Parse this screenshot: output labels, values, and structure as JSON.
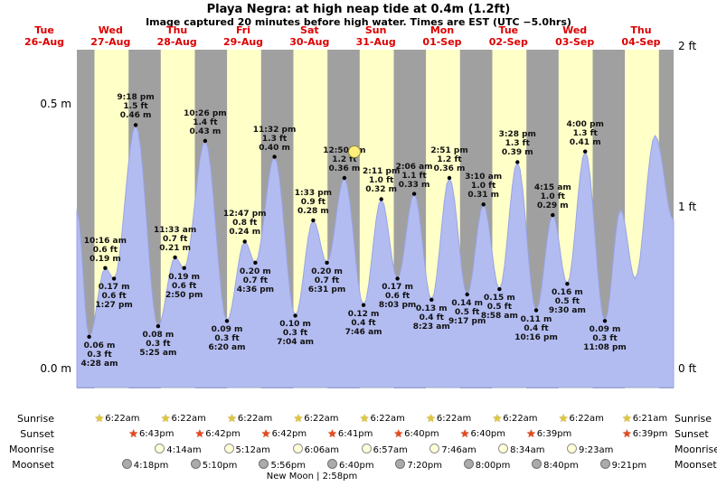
{
  "header": {
    "title": "Playa Negra: at high  neap tide at 0.4m (1.2ft)",
    "subtitle": "Image captured 20 minutes before high water. Times are EST (UTC −5.0hrs)"
  },
  "axis": {
    "left_labels": [
      {
        "text": "0.5 m",
        "value_m": 0.5
      },
      {
        "text": "0.0 m",
        "value_m": 0.0
      }
    ],
    "right_labels": [
      {
        "text": "2 ft",
        "value_m": 0.6096
      },
      {
        "text": "1 ft",
        "value_m": 0.3048
      },
      {
        "text": "0 ft",
        "value_m": 0.0
      }
    ]
  },
  "days": [
    {
      "name": "Tue",
      "date": "26-Aug"
    },
    {
      "name": "Wed",
      "date": "27-Aug"
    },
    {
      "name": "Thu",
      "date": "28-Aug"
    },
    {
      "name": "Fri",
      "date": "29-Aug"
    },
    {
      "name": "Sat",
      "date": "30-Aug"
    },
    {
      "name": "Sun",
      "date": "31-Aug"
    },
    {
      "name": "Mon",
      "date": "01-Sep"
    },
    {
      "name": "Tue",
      "date": "02-Sep"
    },
    {
      "name": "Wed",
      "date": "03-Sep"
    },
    {
      "name": "Thu",
      "date": "04-Sep"
    }
  ],
  "chart_data": {
    "type": "area",
    "title": "Playa Negra: at high  neap tide at 0.4m (1.2ft)",
    "x_axis": {
      "start": "26-Aug 00:00",
      "end": "04-Sep 00:00",
      "range_days": [
        0,
        9
      ]
    },
    "y_axis": {
      "left_units": "m",
      "right_units": "ft",
      "range_m": [
        0.0,
        0.6
      ],
      "ticks_m": [
        0.0,
        0.5
      ],
      "ticks_ft": [
        0,
        1,
        2
      ]
    },
    "daylight": {
      "sunrise_hour": 6.37,
      "sunset_hour": 18.7
    },
    "colors": {
      "day_band": "#ffffc8",
      "night_band": "#a0a0a0",
      "tide_fill": "#b3bcf0",
      "tide_stroke": "#98a4e8",
      "date_text": "#dd0000"
    },
    "tide_events": [
      {
        "day": 0,
        "time": "4:28 am",
        "type": "low",
        "m": 0.06,
        "m_label": "0.06 m",
        "ft_label": "0.3 ft"
      },
      {
        "day": 0,
        "time": "10:16 am",
        "type": "high",
        "m": 0.19,
        "m_label": "0.19 m",
        "ft_label": "0.6 ft"
      },
      {
        "day": 0,
        "time": "1:27 pm",
        "type": "low",
        "m": 0.17,
        "m_label": "0.17 m",
        "ft_label": "0.6 ft"
      },
      {
        "day": 0,
        "time": "9:18 pm",
        "type": "high",
        "m": 0.46,
        "m_label": "0.46 m",
        "ft_label": "1.5 ft"
      },
      {
        "day": 1,
        "time": "5:25 am",
        "type": "low",
        "m": 0.08,
        "m_label": "0.08 m",
        "ft_label": "0.3 ft"
      },
      {
        "day": 1,
        "time": "11:33 am",
        "type": "high",
        "m": 0.21,
        "m_label": "0.21 m",
        "ft_label": "0.7 ft"
      },
      {
        "day": 1,
        "time": "2:50 pm",
        "type": "low",
        "m": 0.19,
        "m_label": "0.19 m",
        "ft_label": "0.6 ft"
      },
      {
        "day": 1,
        "time": "10:26 pm",
        "type": "high",
        "m": 0.43,
        "m_label": "0.43 m",
        "ft_label": "1.4 ft"
      },
      {
        "day": 2,
        "time": "6:20 am",
        "type": "low",
        "m": 0.09,
        "m_label": "0.09 m",
        "ft_label": "0.3 ft"
      },
      {
        "day": 2,
        "time": "12:47 pm",
        "type": "high",
        "m": 0.24,
        "m_label": "0.24 m",
        "ft_label": "0.8 ft"
      },
      {
        "day": 2,
        "time": "4:36 pm",
        "type": "low",
        "m": 0.2,
        "m_label": "0.20 m",
        "ft_label": "0.7 ft"
      },
      {
        "day": 2,
        "time": "11:32 pm",
        "type": "high",
        "m": 0.4,
        "m_label": "0.40 m",
        "ft_label": "1.3 ft"
      },
      {
        "day": 3,
        "time": "7:04 am",
        "type": "low",
        "m": 0.1,
        "m_label": "0.10 m",
        "ft_label": "0.3 ft"
      },
      {
        "day": 3,
        "time": "1:33 pm",
        "type": "high",
        "m": 0.28,
        "m_label": "0.28 m",
        "ft_label": "0.9 ft"
      },
      {
        "day": 3,
        "time": "6:31 pm",
        "type": "low",
        "m": 0.2,
        "m_label": "0.20 m",
        "ft_label": "0.7 ft"
      },
      {
        "day": 4,
        "time": "12:50 am",
        "type": "high",
        "m": 0.36,
        "m_label": "0.36 m",
        "ft_label": "1.2 ft",
        "icon": "moon"
      },
      {
        "day": 4,
        "time": "7:46 am",
        "type": "low",
        "m": 0.12,
        "m_label": "0.12 m",
        "ft_label": "0.4 ft"
      },
      {
        "day": 4,
        "time": "2:11 pm",
        "type": "high",
        "m": 0.32,
        "m_label": "0.32 m",
        "ft_label": "1.0 ft"
      },
      {
        "day": 4,
        "time": "8:03 pm",
        "type": "low",
        "m": 0.17,
        "m_label": "0.17 m",
        "ft_label": "0.6 ft"
      },
      {
        "day": 5,
        "time": "2:06 am",
        "type": "high",
        "m": 0.33,
        "m_label": "0.33 m",
        "ft_label": "1.1 ft"
      },
      {
        "day": 5,
        "time": "8:23 am",
        "type": "low",
        "m": 0.13,
        "m_label": "0.13 m",
        "ft_label": "0.4 ft"
      },
      {
        "day": 5,
        "time": "2:51 pm",
        "type": "high",
        "m": 0.36,
        "m_label": "0.36 m",
        "ft_label": "1.2 ft"
      },
      {
        "day": 5,
        "time": "9:17 pm",
        "type": "low",
        "m": 0.14,
        "m_label": "0.14 m",
        "ft_label": "0.5 ft"
      },
      {
        "day": 6,
        "time": "3:10 am",
        "type": "high",
        "m": 0.31,
        "m_label": "0.31 m",
        "ft_label": "1.0 ft"
      },
      {
        "day": 6,
        "time": "8:58 am",
        "type": "low",
        "m": 0.15,
        "m_label": "0.15 m",
        "ft_label": "0.5 ft"
      },
      {
        "day": 6,
        "time": "3:28 pm",
        "type": "high",
        "m": 0.39,
        "m_label": "0.39 m",
        "ft_label": "1.3 ft"
      },
      {
        "day": 6,
        "time": "10:16 pm",
        "type": "low",
        "m": 0.11,
        "m_label": "0.11 m",
        "ft_label": "0.4 ft"
      },
      {
        "day": 7,
        "time": "4:15 am",
        "type": "high",
        "m": 0.29,
        "m_label": "0.29 m",
        "ft_label": "1.0 ft"
      },
      {
        "day": 7,
        "time": "9:30 am",
        "type": "low",
        "m": 0.16,
        "m_label": "0.16 m",
        "ft_label": "0.5 ft"
      },
      {
        "day": 7,
        "time": "4:00 pm",
        "type": "high",
        "m": 0.41,
        "m_label": "0.41 m",
        "ft_label": "1.3 ft"
      },
      {
        "day": 7,
        "time": "11:08 pm",
        "type": "low",
        "m": 0.09,
        "m_label": "0.09 m",
        "ft_label": "0.3 ft"
      }
    ],
    "edge_points": [
      {
        "t_days": 0.0,
        "m": 0.3
      },
      {
        "t_days": 8.2,
        "m": 0.3
      },
      {
        "t_days": 8.42,
        "m": 0.17
      },
      {
        "t_days": 8.72,
        "m": 0.44
      },
      {
        "t_days": 9.0,
        "m": 0.28
      }
    ]
  },
  "astro": {
    "row_labels_left": [
      "Sunrise",
      "Sunset",
      "Moonrise",
      "Moonset"
    ],
    "row_labels_right": [
      "Sunrise",
      "Sunset",
      "Moonrise",
      "Moonset"
    ],
    "sunrise": [
      {
        "day": 0,
        "time": "6:22am"
      },
      {
        "day": 1,
        "time": "6:22am"
      },
      {
        "day": 2,
        "time": "6:22am"
      },
      {
        "day": 3,
        "time": "6:22am"
      },
      {
        "day": 4,
        "time": "6:22am"
      },
      {
        "day": 5,
        "time": "6:22am"
      },
      {
        "day": 6,
        "time": "6:22am"
      },
      {
        "day": 7,
        "time": "6:22am"
      },
      {
        "day": 8,
        "time": "6:21am"
      }
    ],
    "sunset": [
      {
        "day": 0,
        "time": "6:43pm"
      },
      {
        "day": 1,
        "time": "6:42pm"
      },
      {
        "day": 2,
        "time": "6:42pm"
      },
      {
        "day": 3,
        "time": "6:41pm"
      },
      {
        "day": 4,
        "time": "6:40pm"
      },
      {
        "day": 5,
        "time": "6:40pm"
      },
      {
        "day": 6,
        "time": "6:39pm"
      },
      {
        "day": 8,
        "time": "6:39pm"
      }
    ],
    "moonrise": [
      {
        "day": 1,
        "time": "4:14am"
      },
      {
        "day": 2,
        "time": "5:12am"
      },
      {
        "day": 3,
        "time": "6:06am"
      },
      {
        "day": 4,
        "time": "6:57am"
      },
      {
        "day": 5,
        "time": "7:46am"
      },
      {
        "day": 6,
        "time": "8:34am"
      },
      {
        "day": 7,
        "time": "9:23am"
      }
    ],
    "moonset": [
      {
        "day": 0,
        "time": "4:18pm"
      },
      {
        "day": 1,
        "time": "5:10pm"
      },
      {
        "day": 2,
        "time": "5:56pm"
      },
      {
        "day": 3,
        "time": "6:40pm"
      },
      {
        "day": 4,
        "time": "7:20pm"
      },
      {
        "day": 5,
        "time": "8:00pm"
      },
      {
        "day": 6,
        "time": "8:40pm"
      },
      {
        "day": 7,
        "time": "9:21pm"
      }
    ],
    "footnote": "New Moon | 2:58pm"
  }
}
